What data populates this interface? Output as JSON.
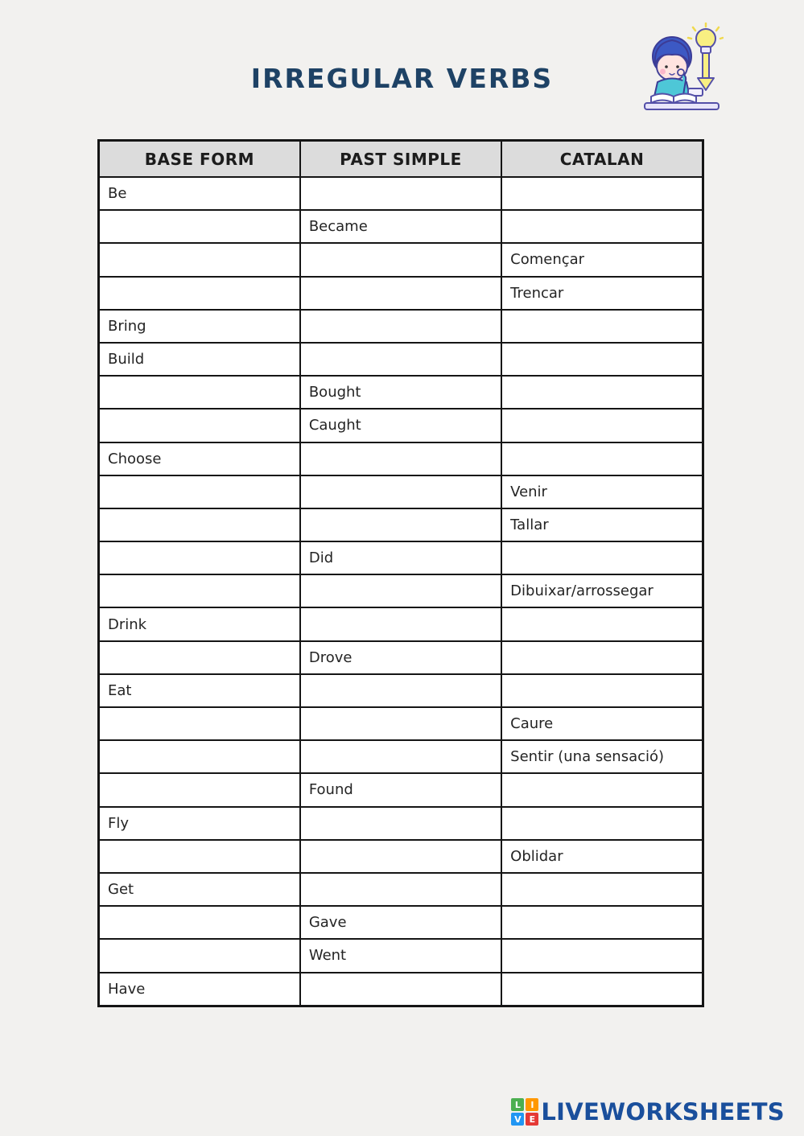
{
  "page": {
    "background_color": "#f2f1ef"
  },
  "header": {
    "title": "IRREGULAR VERBS",
    "title_color": "#1e4265",
    "illustration": "boy-studying-with-lightbulb-pencil"
  },
  "table": {
    "header_bg": "#dcdcdc",
    "border_color": "#151515",
    "columns": [
      "BASE FORM",
      "PAST SIMPLE",
      "CATALAN"
    ],
    "rows": [
      {
        "base_form": "Be",
        "past_simple": "",
        "catalan": ""
      },
      {
        "base_form": "",
        "past_simple": "Became",
        "catalan": ""
      },
      {
        "base_form": "",
        "past_simple": "",
        "catalan": "Començar"
      },
      {
        "base_form": "",
        "past_simple": "",
        "catalan": "Trencar"
      },
      {
        "base_form": "Bring",
        "past_simple": "",
        "catalan": ""
      },
      {
        "base_form": "Build",
        "past_simple": "",
        "catalan": ""
      },
      {
        "base_form": "",
        "past_simple": "Bought",
        "catalan": ""
      },
      {
        "base_form": "",
        "past_simple": "Caught",
        "catalan": ""
      },
      {
        "base_form": "Choose",
        "past_simple": "",
        "catalan": ""
      },
      {
        "base_form": "",
        "past_simple": "",
        "catalan": "Venir"
      },
      {
        "base_form": "",
        "past_simple": "",
        "catalan": "Tallar"
      },
      {
        "base_form": "",
        "past_simple": "Did",
        "catalan": ""
      },
      {
        "base_form": "",
        "past_simple": "",
        "catalan": "Dibuixar/arrossegar"
      },
      {
        "base_form": "Drink",
        "past_simple": "",
        "catalan": ""
      },
      {
        "base_form": "",
        "past_simple": "Drove",
        "catalan": ""
      },
      {
        "base_form": "Eat",
        "past_simple": "",
        "catalan": ""
      },
      {
        "base_form": "",
        "past_simple": "",
        "catalan": "Caure"
      },
      {
        "base_form": "",
        "past_simple": "",
        "catalan": "Sentir (una sensació)"
      },
      {
        "base_form": "",
        "past_simple": "Found",
        "catalan": ""
      },
      {
        "base_form": "Fly",
        "past_simple": "",
        "catalan": ""
      },
      {
        "base_form": "",
        "past_simple": "",
        "catalan": "Oblidar"
      },
      {
        "base_form": "Get",
        "past_simple": "",
        "catalan": ""
      },
      {
        "base_form": "",
        "past_simple": "Gave",
        "catalan": ""
      },
      {
        "base_form": "",
        "past_simple": "Went",
        "catalan": ""
      },
      {
        "base_form": "Have",
        "past_simple": "",
        "catalan": ""
      }
    ]
  },
  "footer": {
    "brand": "LIVEWORKSHEETS",
    "brand_color": "#1a4f9c",
    "logo_tiles": [
      {
        "letter": "L",
        "color": "#4caf50"
      },
      {
        "letter": "I",
        "color": "#ff9800"
      },
      {
        "letter": "V",
        "color": "#2196f3"
      },
      {
        "letter": "E",
        "color": "#e53935"
      }
    ]
  }
}
